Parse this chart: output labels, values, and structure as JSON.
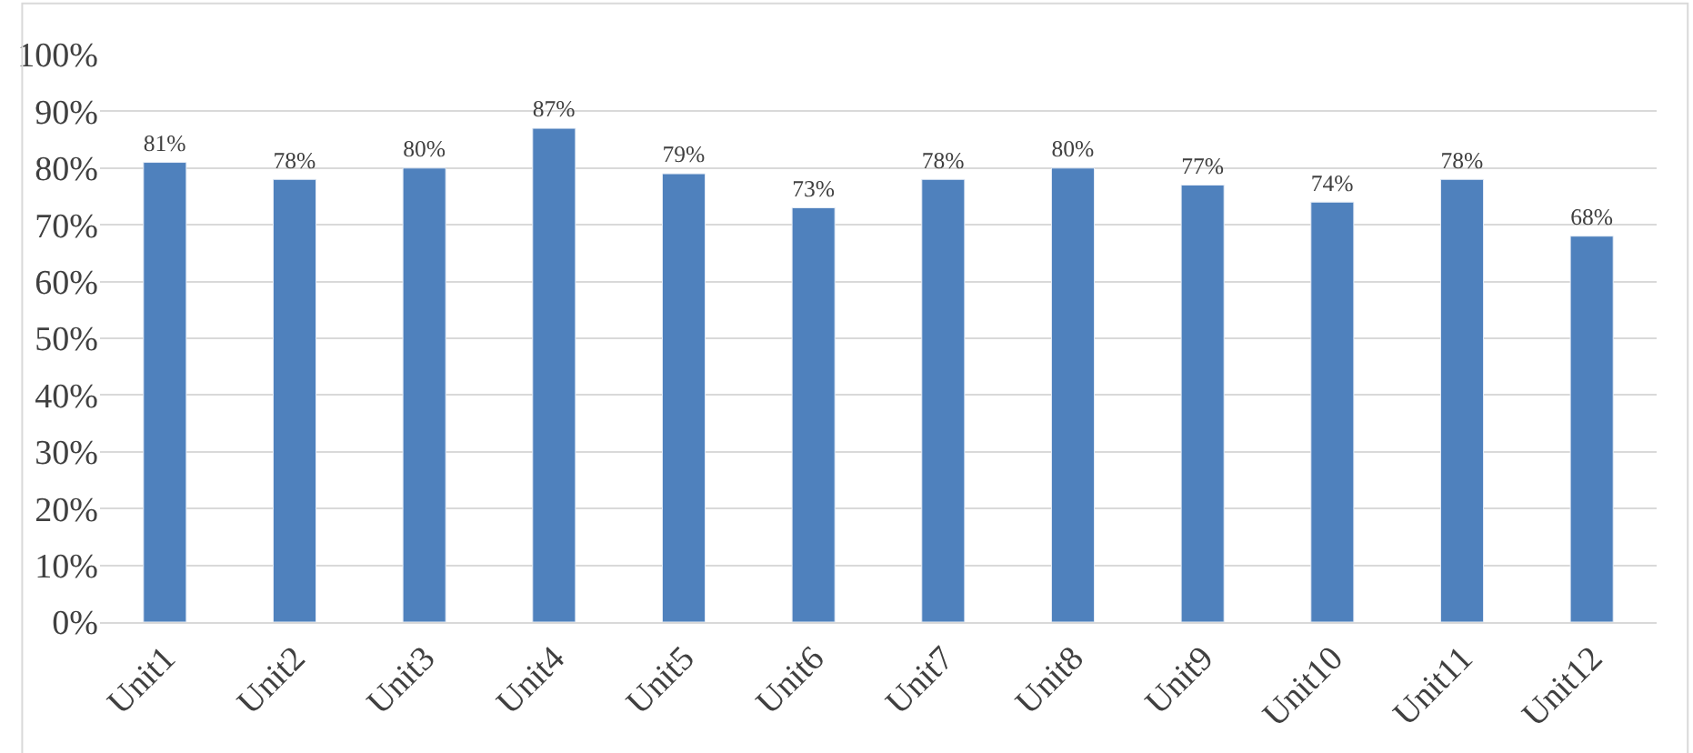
{
  "chart_data": {
    "type": "bar",
    "categories": [
      "Unit1",
      "Unit2",
      "Unit3",
      "Unit4",
      "Unit5",
      "Unit6",
      "Unit7",
      "Unit8",
      "Unit9",
      "Unit10",
      "Unit11",
      "Unit12"
    ],
    "values": [
      81,
      78,
      80,
      87,
      79,
      73,
      78,
      80,
      77,
      74,
      78,
      68
    ],
    "value_labels": [
      "81%",
      "78%",
      "80%",
      "87%",
      "79%",
      "73%",
      "78%",
      "80%",
      "77%",
      "74%",
      "78%",
      "68%"
    ],
    "color": "#4f81bd",
    "ylim": [
      0,
      100
    ],
    "yticks": [
      {
        "value": 0,
        "label": "0%"
      },
      {
        "value": 10,
        "label": "10%"
      },
      {
        "value": 20,
        "label": "20%"
      },
      {
        "value": 30,
        "label": "30%"
      },
      {
        "value": 40,
        "label": "40%"
      },
      {
        "value": 50,
        "label": "50%"
      },
      {
        "value": 60,
        "label": "60%"
      },
      {
        "value": 70,
        "label": "70%"
      },
      {
        "value": 80,
        "label": "80%"
      },
      {
        "value": 90,
        "label": "90%"
      },
      {
        "value": 100,
        "label": "100%"
      }
    ],
    "grid": "y"
  }
}
